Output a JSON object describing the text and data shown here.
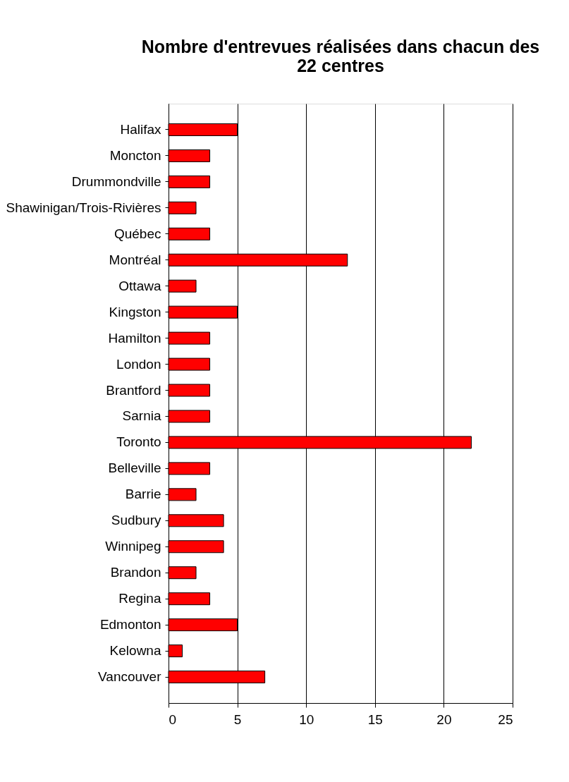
{
  "chart_data": {
    "type": "bar",
    "orientation": "horizontal",
    "title": "Nombre d'entrevues réalisées dans chacun des 22 centres",
    "categories": [
      "Halifax",
      "Moncton",
      "Drummondville",
      "Shawinigan/Trois-Rivières",
      "Québec",
      "Montréal",
      "Ottawa",
      "Kingston",
      "Hamilton",
      "London",
      "Brantford",
      "Sarnia",
      "Toronto",
      "Belleville",
      "Barrie",
      "Sudbury",
      "Winnipeg",
      "Brandon",
      "Regina",
      "Edmonton",
      "Kelowna",
      "Vancouver"
    ],
    "values": [
      5,
      3,
      3,
      2,
      3,
      13,
      2,
      5,
      3,
      3,
      3,
      3,
      22,
      3,
      2,
      4,
      4,
      2,
      3,
      5,
      1,
      7
    ],
    "color": "#ff0000",
    "xlim": [
      0,
      25
    ],
    "xticks": [
      0,
      5,
      10,
      15,
      20,
      25
    ],
    "grid": "x"
  }
}
